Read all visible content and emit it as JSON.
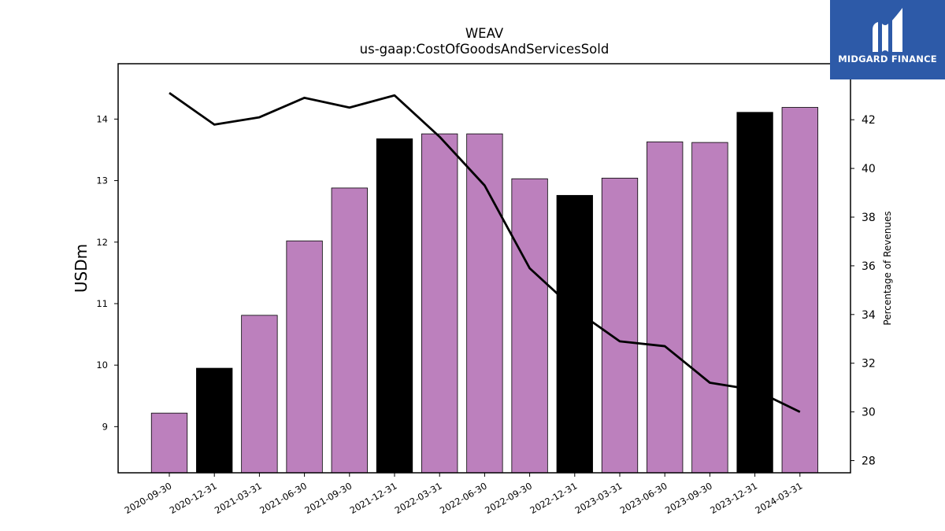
{
  "chart_data": {
    "type": "bar",
    "title": "WEAV",
    "subtitle": "us-gaap:CostOfGoodsAndServicesSold",
    "ylabel": "USDm",
    "y2label": "Percentage of Revenues",
    "ylim": [
      8.25,
      14.9
    ],
    "y2lim": [
      27.5,
      44.3
    ],
    "yticks": [
      9,
      10,
      11,
      12,
      13,
      14
    ],
    "y2ticks": [
      28,
      30,
      32,
      34,
      36,
      38,
      40,
      42
    ],
    "categories": [
      "2020-09-30",
      "2020-12-31",
      "2021-03-31",
      "2021-06-30",
      "2021-09-30",
      "2021-12-31",
      "2022-03-31",
      "2022-06-30",
      "2022-09-30",
      "2022-12-31",
      "2023-03-31",
      "2023-06-30",
      "2023-09-30",
      "2023-12-31",
      "2024-03-31"
    ],
    "series": [
      {
        "kind": "bar",
        "axis": "left",
        "values": [
          9.22,
          9.95,
          10.81,
          12.02,
          12.88,
          13.68,
          13.76,
          13.76,
          13.03,
          12.76,
          13.04,
          13.63,
          13.62,
          14.11,
          14.19
        ],
        "colors": [
          "#bc80bd",
          "#000000",
          "#bc80bd",
          "#bc80bd",
          "#bc80bd",
          "#000000",
          "#bc80bd",
          "#bc80bd",
          "#bc80bd",
          "#000000",
          "#bc80bd",
          "#bc80bd",
          "#bc80bd",
          "#000000",
          "#bc80bd"
        ]
      },
      {
        "kind": "line",
        "axis": "right",
        "color": "#000000",
        "values": [
          43.1,
          41.8,
          42.1,
          42.9,
          42.5,
          43.0,
          41.3,
          39.3,
          35.9,
          34.2,
          32.9,
          32.7,
          31.2,
          30.9,
          30.0
        ]
      }
    ],
    "grid": false,
    "legend": "none"
  },
  "logo": {
    "text": "MIDGARD FINANCE",
    "bg": "#2d5aa8"
  }
}
